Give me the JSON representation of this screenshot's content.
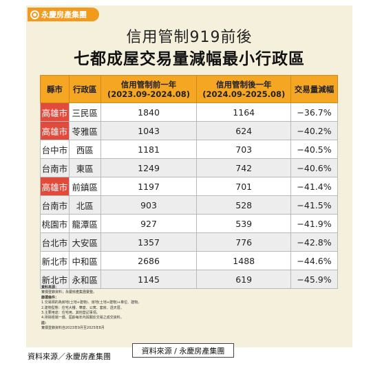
{
  "logo": {
    "text": "永慶房產集團"
  },
  "title_line1": "信用管制919前後",
  "title_line2": "七都成屋交易量減幅最小行政區",
  "table": {
    "headers": {
      "city": "縣市",
      "district": "行政區",
      "before_line1": "信用管制前一年",
      "before_line2": "(2023.09-2024.08)",
      "after_line1": "信用管制後一年",
      "after_line2": "(2024.09-2025.08)",
      "change": "交易量減幅"
    },
    "rows": [
      {
        "city": "高雄市",
        "district": "三民區",
        "before": "1840",
        "after": "1164",
        "change": "−36.7%",
        "highlight": true
      },
      {
        "city": "高雄市",
        "district": "苓雅區",
        "before": "1043",
        "after": "624",
        "change": "−40.2%",
        "highlight": true
      },
      {
        "city": "台中市",
        "district": "西區",
        "before": "1181",
        "after": "703",
        "change": "−40.5%",
        "highlight": false
      },
      {
        "city": "台南市",
        "district": "東區",
        "before": "1249",
        "after": "742",
        "change": "−40.6%",
        "highlight": false
      },
      {
        "city": "高雄市",
        "district": "前鎮區",
        "before": "1197",
        "after": "701",
        "change": "−41.4%",
        "highlight": true
      },
      {
        "city": "台南市",
        "district": "北區",
        "before": "903",
        "after": "528",
        "change": "−41.5%",
        "highlight": false
      },
      {
        "city": "桃園市",
        "district": "龍潭區",
        "before": "927",
        "after": "539",
        "change": "−41.9%",
        "highlight": false
      },
      {
        "city": "台北市",
        "district": "大安區",
        "before": "1357",
        "after": "776",
        "change": "−42.8%",
        "highlight": false
      },
      {
        "city": "新北市",
        "district": "中和區",
        "before": "2686",
        "after": "1488",
        "change": "−44.6%",
        "highlight": false
      },
      {
        "city": "新北市",
        "district": "永和區",
        "before": "1145",
        "after": "619",
        "change": "−45.9%",
        "highlight": false
      }
    ],
    "highlight_color": "#e24a3b",
    "header_color": "#f5a623"
  },
  "notes": {
    "source_heading": "資料來源：",
    "source_text": "實價登錄資料；永慶房產集團彙整。",
    "filter_heading": "篩選條件：",
    "filter_lines": [
      "1.交易標的為房地(土地+建物)、房地(土地+建物)+車位、建物。",
      "2.建物型態：住宅大樓、華廈、公寓、套房、透天厝。",
      "3.主要用途：住宅用、其他登記事項。",
      "4.排除極端一價、屆齡每年內與關反交易之成交資料。"
    ],
    "note_heading": "註:",
    "note_text": "實價登錄資料自2023年9月至2025年8月"
  },
  "caption": "資料來源／永慶房產集團",
  "source_box": "資料來源 / 永慶房產集團"
}
